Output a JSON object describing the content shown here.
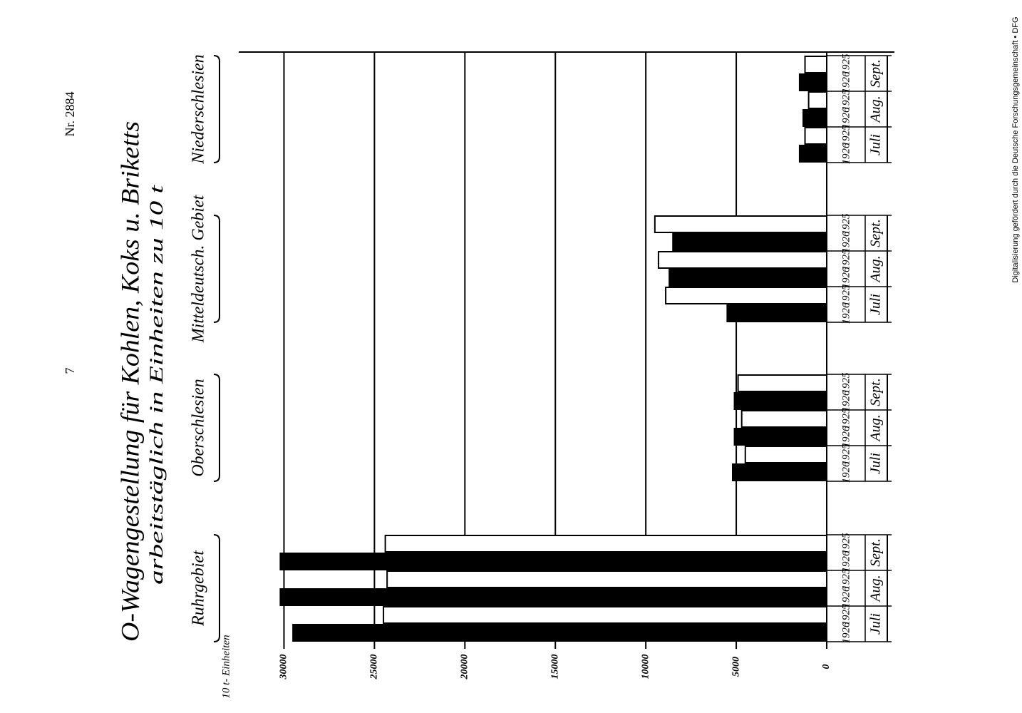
{
  "page": {
    "number": "7",
    "doc_number": "Nr. 2884",
    "credit": "Digitalisierung gefördert durch die Deutsche Forschungsgemeinschaft • DFG"
  },
  "chart_data": {
    "type": "bar",
    "title": "O-Wagengestellung für Kohlen, Koks u. Briketts",
    "subtitle": "arbeitstäglich in Einheiten zu 10 t",
    "xlabel": "10 t- Einheiten",
    "groups": [
      "Ruhrgebiet",
      "Oberschlesien",
      "Mitteldeutsch. Gebiet",
      "Niederschlesien"
    ],
    "categories": [
      "Juli",
      "Aug.",
      "Sept."
    ],
    "series": [
      {
        "name": "1926",
        "color": "#000000",
        "values": [
          [
            29500,
            30200,
            30200
          ],
          [
            5200,
            5100,
            5100
          ],
          [
            5500,
            8700,
            8500
          ],
          [
            1500,
            1300,
            1500
          ]
        ]
      },
      {
        "name": "1925",
        "color": "#ffffff",
        "values": [
          [
            24500,
            24300,
            24400
          ],
          [
            4500,
            4700,
            4900
          ],
          [
            8900,
            9300,
            9500
          ],
          [
            1200,
            1000,
            1200
          ]
        ]
      }
    ],
    "xlim": [
      0,
      32500
    ],
    "xticks": [
      0,
      5000,
      10000,
      15000,
      20000,
      25000,
      30000
    ],
    "grid": true
  }
}
